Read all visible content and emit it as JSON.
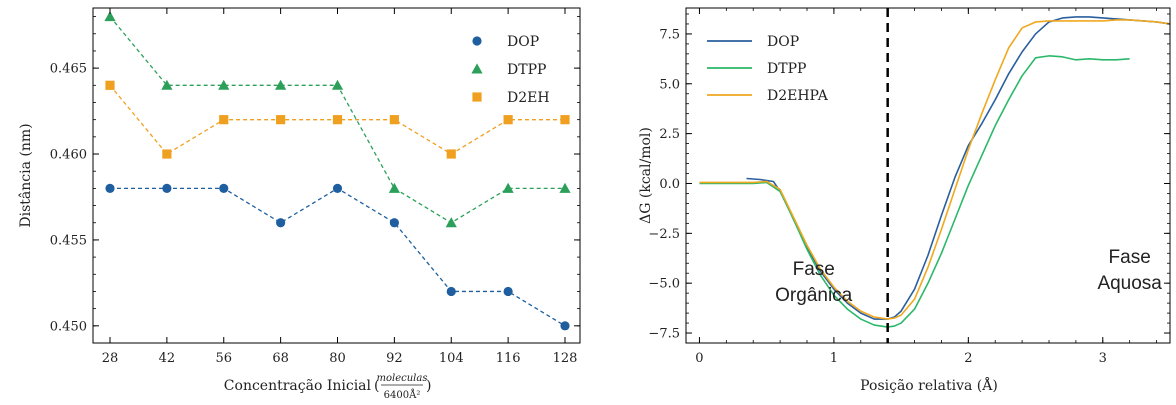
{
  "chart_data": [
    {
      "type": "scatter",
      "xlabel": "Concentração Inicial",
      "xlabel_unit_numerator": "moleculas",
      "xlabel_unit_denominator": "6400Å²",
      "ylabel": "Distância (nm)",
      "x_categories": [
        "28",
        "42",
        "56",
        "68",
        "80",
        "92",
        "104",
        "116",
        "128"
      ],
      "y_ticks": [
        "0.450",
        "0.455",
        "0.460",
        "0.465"
      ],
      "ylim": [
        0.449,
        0.4685
      ],
      "legend_position": "top-right",
      "line_style": "dashed",
      "series": [
        {
          "name": "DOP",
          "marker": "circle",
          "color": "#1f5f9f",
          "values": [
            0.458,
            0.458,
            0.458,
            0.456,
            0.458,
            0.456,
            0.452,
            0.452,
            0.45
          ]
        },
        {
          "name": "DTPP",
          "marker": "triangle",
          "color": "#2ca05a",
          "values": [
            0.468,
            0.464,
            0.464,
            0.464,
            0.464,
            0.458,
            0.456,
            0.458,
            0.458
          ]
        },
        {
          "name": "D2EH",
          "marker": "square",
          "color": "#f0a020",
          "values": [
            0.464,
            0.46,
            0.462,
            0.462,
            0.462,
            0.462,
            0.46,
            0.462,
            0.462
          ]
        }
      ]
    },
    {
      "type": "line",
      "xlabel": "Posição relativa (Å)",
      "ylabel": "ΔG (kcal/mol)",
      "x_ticks": [
        "0",
        "1",
        "2",
        "3"
      ],
      "y_ticks": [
        "−7.5",
        "−5.0",
        "−2.5",
        "0.0",
        "2.5",
        "5.0",
        "7.5"
      ],
      "xlim": [
        -0.1,
        3.5
      ],
      "ylim": [
        -8.0,
        8.8
      ],
      "legend_position": "top-left",
      "vline_x": 1.4,
      "annotations": [
        {
          "lines": [
            "Fase",
            "Orgânica"
          ],
          "x": 0.85,
          "y": -4.6
        },
        {
          "lines": [
            "Fase",
            "Aquosa"
          ],
          "x": 3.2,
          "y": -4.0
        }
      ],
      "series": [
        {
          "name": "DOP",
          "color": "#2a5f9e",
          "x": [
            0.35,
            0.45,
            0.55,
            0.62,
            0.7,
            0.8,
            0.9,
            1.0,
            1.1,
            1.2,
            1.3,
            1.4,
            1.45,
            1.5,
            1.6,
            1.7,
            1.8,
            1.9,
            2.0,
            2.1,
            2.2,
            2.3,
            2.4,
            2.5,
            2.6,
            2.7,
            2.8,
            2.9,
            3.0,
            3.1,
            3.2,
            3.3,
            3.4,
            3.5
          ],
          "y": [
            0.25,
            0.2,
            0.1,
            -0.6,
            -1.8,
            -3.2,
            -4.4,
            -5.3,
            -6.0,
            -6.5,
            -6.8,
            -6.8,
            -6.7,
            -6.4,
            -5.3,
            -3.6,
            -1.6,
            0.3,
            1.9,
            3.0,
            4.2,
            5.5,
            6.6,
            7.5,
            8.1,
            8.3,
            8.35,
            8.35,
            8.3,
            8.25,
            8.2,
            8.15,
            8.1,
            8.0
          ]
        },
        {
          "name": "DTPP",
          "color": "#2cb86a",
          "x": [
            0.0,
            0.2,
            0.4,
            0.5,
            0.6,
            0.7,
            0.8,
            0.9,
            1.0,
            1.1,
            1.2,
            1.3,
            1.4,
            1.45,
            1.5,
            1.6,
            1.7,
            1.8,
            1.9,
            2.0,
            2.1,
            2.2,
            2.3,
            2.4,
            2.5,
            2.6,
            2.7,
            2.8,
            2.9,
            3.0,
            3.1,
            3.2
          ],
          "y": [
            0.0,
            0.0,
            0.0,
            0.05,
            -0.4,
            -1.8,
            -3.3,
            -4.6,
            -5.6,
            -6.3,
            -6.8,
            -7.1,
            -7.2,
            -7.15,
            -7.0,
            -6.3,
            -5.0,
            -3.5,
            -1.8,
            -0.1,
            1.4,
            2.9,
            4.2,
            5.4,
            6.3,
            6.4,
            6.35,
            6.2,
            6.25,
            6.2,
            6.2,
            6.25
          ]
        },
        {
          "name": "D2EHPA",
          "color": "#f0a820",
          "x": [
            0.0,
            0.2,
            0.4,
            0.5,
            0.6,
            0.7,
            0.8,
            0.9,
            1.0,
            1.1,
            1.2,
            1.3,
            1.4,
            1.45,
            1.5,
            1.6,
            1.7,
            1.8,
            1.9,
            2.0,
            2.1,
            2.2,
            2.3,
            2.4,
            2.5,
            2.6,
            2.7,
            2.8,
            2.9,
            3.0,
            3.1,
            3.2,
            3.3,
            3.4,
            3.5
          ],
          "y": [
            0.05,
            0.05,
            0.05,
            0.1,
            -0.3,
            -1.7,
            -3.1,
            -4.3,
            -5.2,
            -5.9,
            -6.4,
            -6.7,
            -6.8,
            -6.75,
            -6.6,
            -5.8,
            -4.2,
            -2.3,
            -0.3,
            1.7,
            3.5,
            5.2,
            6.8,
            7.8,
            8.1,
            8.15,
            8.15,
            8.15,
            8.15,
            8.15,
            8.2,
            8.2,
            8.15,
            8.1,
            8.0
          ]
        }
      ]
    }
  ]
}
